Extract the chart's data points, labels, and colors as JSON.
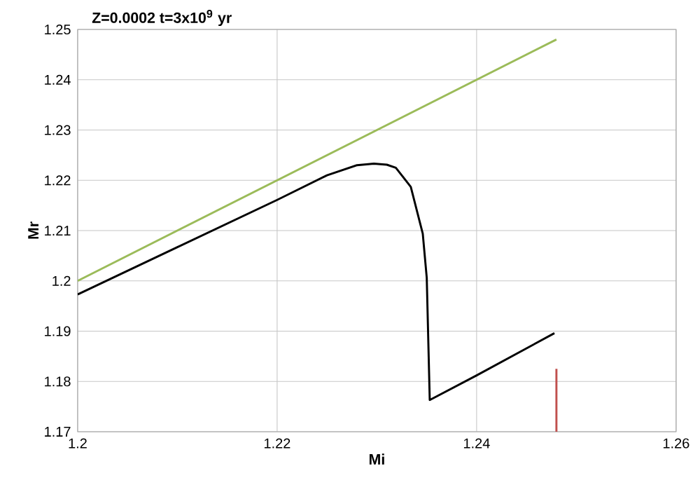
{
  "chart_data": {
    "type": "line",
    "title": "**Z=0.0002    t=3x10$^{9}$ yr**",
    "xlabel": "Mi",
    "ylabel": "Mr",
    "xlim": [
      1.2,
      1.26
    ],
    "xticks": [
      1.2,
      1.22,
      1.24,
      1.26
    ],
    "ylim": [
      1.17,
      1.25
    ],
    "yticks": [
      1.17,
      1.18,
      1.19,
      1.2,
      1.21,
      1.22,
      1.23,
      1.24,
      1.25
    ],
    "grid": true,
    "marker": "none",
    "line_style": "solid",
    "series": [
      {
        "color": "#9bbb59",
        "x": [
          1.2,
          1.248
        ],
        "values": [
          1.2,
          1.248
        ]
      },
      {
        "color": "#000000",
        "x": [
          1.2,
          1.21,
          1.22,
          1.225,
          1.228,
          1.2297,
          1.231,
          1.2319,
          1.2334,
          1.2346,
          1.235,
          1.2353,
          1.24,
          1.2478
        ],
        "values": [
          1.1973,
          1.2067,
          1.2161,
          1.221,
          1.223,
          1.2233,
          1.2231,
          1.2225,
          1.2187,
          1.2094,
          1.2006,
          1.1763,
          1.1812,
          1.1896
        ]
      },
      {
        "color": "#c0504d",
        "x": [
          1.248,
          1.248
        ],
        "values": [
          1.17,
          1.1825
        ]
      }
    ]
  }
}
